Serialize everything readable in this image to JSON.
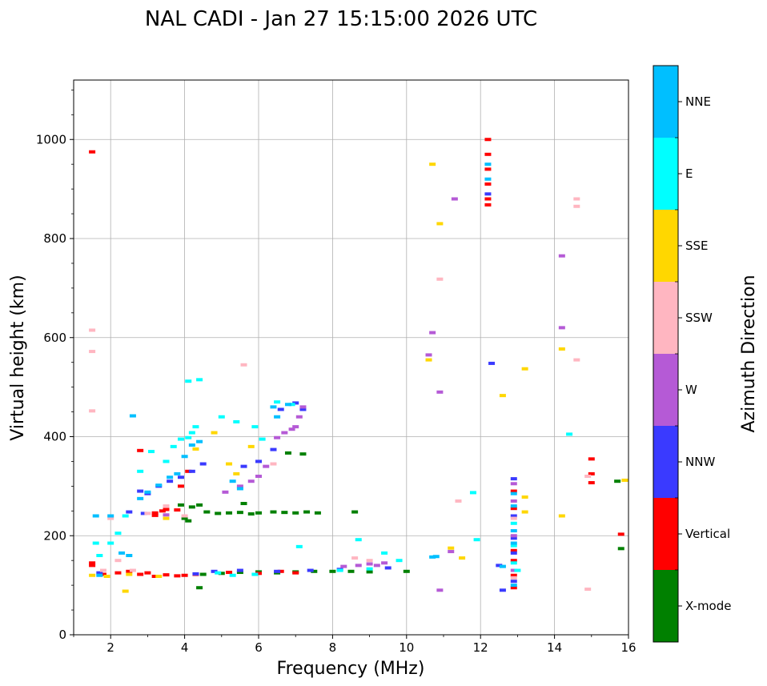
{
  "chart_data": {
    "type": "scatter",
    "title": "NAL CADI - Jan 27 15:15:00 2026 UTC",
    "xlabel": "Frequency (MHz)",
    "ylabel": "Virtual height (km)",
    "xlim": [
      1,
      16
    ],
    "ylim": [
      0,
      1120
    ],
    "x_ticks": [
      2,
      4,
      6,
      8,
      10,
      12,
      14,
      16
    ],
    "y_ticks": [
      0,
      200,
      400,
      600,
      800,
      1000
    ],
    "grid": true,
    "colorbar": {
      "title": "Azimuth Direction",
      "categories": [
        {
          "name": "X-mode",
          "color": "#008000"
        },
        {
          "name": "Vertical",
          "color": "#ff0000"
        },
        {
          "name": "NNW",
          "color": "#3a3aff"
        },
        {
          "name": "W",
          "color": "#b55ad6"
        },
        {
          "name": "SSW",
          "color": "#ffb6c1"
        },
        {
          "name": "SSE",
          "color": "#ffd700"
        },
        {
          "name": "E",
          "color": "#00ffff"
        },
        {
          "name": "NNE",
          "color": "#00bfff"
        }
      ]
    },
    "series": [
      {
        "name": "X-mode",
        "points": [
          [
            4.6,
            248
          ],
          [
            4.9,
            245
          ],
          [
            5.2,
            246
          ],
          [
            5.5,
            247
          ],
          [
            5.8,
            244
          ],
          [
            6.0,
            246
          ],
          [
            6.4,
            248
          ],
          [
            6.7,
            247
          ],
          [
            7.0,
            246
          ],
          [
            7.3,
            248
          ],
          [
            7.6,
            246
          ],
          [
            4.0,
            235
          ],
          [
            4.1,
            230
          ],
          [
            3.9,
            262
          ],
          [
            4.2,
            258
          ],
          [
            4.4,
            262
          ],
          [
            4.5,
            122
          ],
          [
            5.0,
            124
          ],
          [
            5.5,
            126
          ],
          [
            6.0,
            127
          ],
          [
            6.5,
            125
          ],
          [
            7.0,
            127
          ],
          [
            7.5,
            128
          ],
          [
            8.0,
            128
          ],
          [
            8.5,
            128
          ],
          [
            9.0,
            127
          ],
          [
            10.0,
            128
          ],
          [
            8.6,
            248
          ],
          [
            7.2,
            365
          ],
          [
            6.8,
            367
          ],
          [
            4.4,
            95
          ],
          [
            5.6,
            265
          ],
          [
            15.7,
            310
          ],
          [
            15.8,
            174
          ]
        ]
      },
      {
        "name": "Vertical",
        "points": [
          [
            1.5,
            975
          ],
          [
            1.5,
            145
          ],
          [
            1.5,
            140
          ],
          [
            1.8,
            122
          ],
          [
            2.2,
            125
          ],
          [
            2.5,
            128
          ],
          [
            2.8,
            122
          ],
          [
            3.0,
            125
          ],
          [
            3.2,
            118
          ],
          [
            3.5,
            121
          ],
          [
            3.8,
            119
          ],
          [
            4.0,
            120
          ],
          [
            4.3,
            122
          ],
          [
            5.2,
            126
          ],
          [
            6.0,
            124
          ],
          [
            6.6,
            128
          ],
          [
            7.0,
            125
          ],
          [
            3.4,
            250
          ],
          [
            3.5,
            253
          ],
          [
            3.2,
            246
          ],
          [
            3.8,
            252
          ],
          [
            3.2,
            241
          ],
          [
            12.2,
            1000
          ],
          [
            12.2,
            970
          ],
          [
            12.2,
            940
          ],
          [
            12.2,
            910
          ],
          [
            12.2,
            880
          ],
          [
            12.2,
            868
          ],
          [
            12.9,
            290
          ],
          [
            12.9,
            255
          ],
          [
            12.9,
            170
          ],
          [
            12.9,
            150
          ],
          [
            12.9,
            120
          ],
          [
            12.9,
            95
          ],
          [
            15.0,
            355
          ],
          [
            15.0,
            325
          ],
          [
            15.0,
            307
          ],
          [
            15.8,
            203
          ],
          [
            3.9,
            300
          ],
          [
            4.1,
            330
          ],
          [
            2.8,
            372
          ]
        ]
      },
      {
        "name": "NNW",
        "points": [
          [
            2.8,
            290
          ],
          [
            3.0,
            285
          ],
          [
            3.3,
            300
          ],
          [
            3.6,
            310
          ],
          [
            3.9,
            318
          ],
          [
            4.2,
            330
          ],
          [
            4.5,
            345
          ],
          [
            2.9,
            245
          ],
          [
            2.5,
            248
          ],
          [
            4.3,
            123
          ],
          [
            4.8,
            128
          ],
          [
            5.5,
            130
          ],
          [
            6.5,
            128
          ],
          [
            7.4,
            130
          ],
          [
            8.2,
            132
          ],
          [
            9.5,
            135
          ],
          [
            6.6,
            455
          ],
          [
            7.0,
            468
          ],
          [
            7.2,
            455
          ],
          [
            5.6,
            340
          ],
          [
            6.0,
            350
          ],
          [
            6.4,
            374
          ],
          [
            12.3,
            548
          ],
          [
            12.5,
            140
          ],
          [
            12.6,
            90
          ],
          [
            12.9,
            315
          ],
          [
            12.9,
            240
          ],
          [
            12.9,
            195
          ],
          [
            12.9,
            165
          ],
          [
            12.9,
            108
          ],
          [
            12.2,
            890
          ],
          [
            1.7,
            125
          ]
        ]
      },
      {
        "name": "W",
        "points": [
          [
            6.5,
            398
          ],
          [
            6.7,
            408
          ],
          [
            6.9,
            415
          ],
          [
            7.0,
            420
          ],
          [
            7.1,
            440
          ],
          [
            7.2,
            460
          ],
          [
            5.5,
            300
          ],
          [
            5.8,
            310
          ],
          [
            6.0,
            320
          ],
          [
            6.2,
            340
          ],
          [
            5.1,
            288
          ],
          [
            8.7,
            140
          ],
          [
            9.0,
            143
          ],
          [
            9.2,
            140
          ],
          [
            9.4,
            145
          ],
          [
            8.3,
            138
          ],
          [
            10.6,
            565
          ],
          [
            10.7,
            610
          ],
          [
            10.9,
            490
          ],
          [
            11.3,
            880
          ],
          [
            11.2,
            168
          ],
          [
            10.9,
            90
          ],
          [
            12.9,
            305
          ],
          [
            12.9,
            270
          ],
          [
            12.9,
            200
          ],
          [
            12.9,
            130
          ],
          [
            14.2,
            620
          ],
          [
            14.2,
            765
          ],
          [
            3.5,
            242
          ]
        ]
      },
      {
        "name": "SSW",
        "points": [
          [
            1.5,
            615
          ],
          [
            1.5,
            572
          ],
          [
            1.5,
            452
          ],
          [
            1.8,
            130
          ],
          [
            2.0,
            235
          ],
          [
            2.2,
            150
          ],
          [
            2.6,
            130
          ],
          [
            3.0,
            245
          ],
          [
            3.5,
            260
          ],
          [
            4.0,
            240
          ],
          [
            5.6,
            545
          ],
          [
            6.4,
            345
          ],
          [
            8.6,
            155
          ],
          [
            9.0,
            150
          ],
          [
            10.9,
            718
          ],
          [
            11.4,
            270
          ],
          [
            12.9,
            235
          ],
          [
            12.9,
            115
          ],
          [
            14.6,
            880
          ],
          [
            14.6,
            865
          ],
          [
            14.6,
            555
          ],
          [
            14.9,
            320
          ],
          [
            14.9,
            92
          ]
        ]
      },
      {
        "name": "SSE",
        "points": [
          [
            1.5,
            120
          ],
          [
            1.9,
            118
          ],
          [
            2.4,
            88
          ],
          [
            2.5,
            122
          ],
          [
            3.3,
            118
          ],
          [
            4.8,
            408
          ],
          [
            5.2,
            345
          ],
          [
            5.4,
            325
          ],
          [
            5.8,
            380
          ],
          [
            10.7,
            950
          ],
          [
            10.9,
            830
          ],
          [
            10.6,
            555
          ],
          [
            11.2,
            175
          ],
          [
            11.5,
            155
          ],
          [
            12.6,
            483
          ],
          [
            13.2,
            537
          ],
          [
            13.2,
            278
          ],
          [
            13.2,
            248
          ],
          [
            14.2,
            577
          ],
          [
            14.2,
            240
          ],
          [
            15.9,
            312
          ],
          [
            3.5,
            235
          ],
          [
            4.3,
            375
          ]
        ]
      },
      {
        "name": "E",
        "points": [
          [
            1.6,
            185
          ],
          [
            1.7,
            160
          ],
          [
            2.0,
            185
          ],
          [
            2.2,
            205
          ],
          [
            2.4,
            240
          ],
          [
            2.8,
            330
          ],
          [
            3.1,
            370
          ],
          [
            3.5,
            350
          ],
          [
            3.7,
            380
          ],
          [
            3.9,
            395
          ],
          [
            4.1,
            398
          ],
          [
            4.2,
            408
          ],
          [
            4.3,
            420
          ],
          [
            4.1,
            512
          ],
          [
            4.4,
            515
          ],
          [
            5.0,
            440
          ],
          [
            5.4,
            430
          ],
          [
            5.9,
            420
          ],
          [
            6.1,
            395
          ],
          [
            6.5,
            470
          ],
          [
            6.9,
            465
          ],
          [
            4.9,
            125
          ],
          [
            5.3,
            120
          ],
          [
            5.9,
            122
          ],
          [
            8.2,
            130
          ],
          [
            8.7,
            192
          ],
          [
            9.0,
            133
          ],
          [
            9.4,
            165
          ],
          [
            9.8,
            150
          ],
          [
            11.8,
            287
          ],
          [
            11.9,
            192
          ],
          [
            12.9,
            225
          ],
          [
            12.9,
            180
          ],
          [
            12.9,
            145
          ],
          [
            14.4,
            405
          ],
          [
            13.0,
            130
          ],
          [
            7.1,
            178
          ]
        ]
      },
      {
        "name": "NNE",
        "points": [
          [
            1.6,
            240
          ],
          [
            1.7,
            120
          ],
          [
            2.0,
            240
          ],
          [
            2.3,
            165
          ],
          [
            2.5,
            160
          ],
          [
            2.8,
            275
          ],
          [
            3.0,
            288
          ],
          [
            3.3,
            302
          ],
          [
            3.6,
            318
          ],
          [
            3.8,
            325
          ],
          [
            4.0,
            360
          ],
          [
            4.2,
            383
          ],
          [
            4.4,
            390
          ],
          [
            2.6,
            442
          ],
          [
            6.5,
            440
          ],
          [
            6.8,
            465
          ],
          [
            6.4,
            460
          ],
          [
            5.3,
            310
          ],
          [
            5.5,
            295
          ],
          [
            10.7,
            157
          ],
          [
            10.8,
            158
          ],
          [
            12.9,
            285
          ],
          [
            12.9,
            260
          ],
          [
            12.9,
            210
          ],
          [
            12.9,
            185
          ],
          [
            12.9,
            100
          ],
          [
            12.2,
            950
          ],
          [
            12.2,
            920
          ],
          [
            12.6,
            138
          ]
        ]
      }
    ]
  }
}
